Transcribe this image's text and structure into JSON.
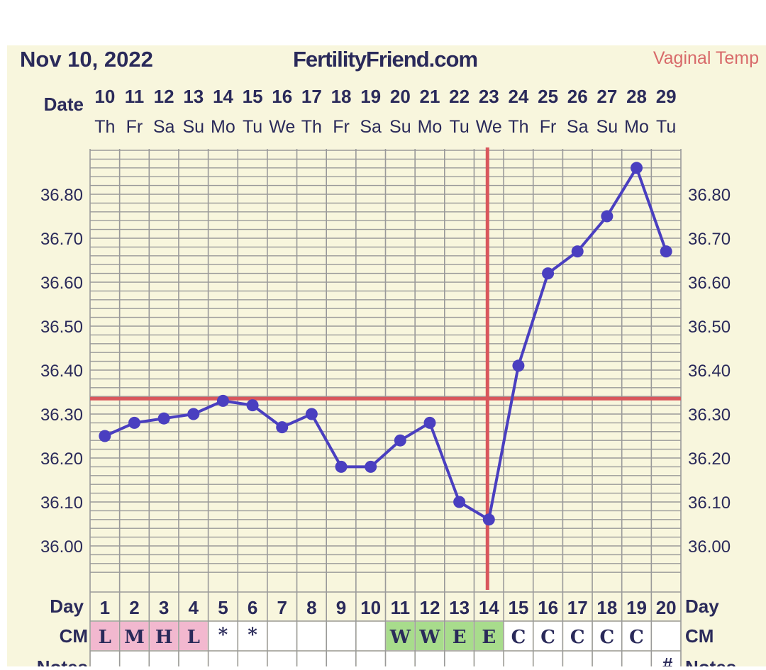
{
  "header": {
    "date": "Nov 10, 2022",
    "site": "FertilityFriend.com",
    "mode": "Vaginal Temp"
  },
  "labels": {
    "date": "Date",
    "day": "Day",
    "cm": "CM",
    "notes": "Notes"
  },
  "colors": {
    "background": "#f8f6dd",
    "grid": "#9a9a9a",
    "line": "#4a3fc0",
    "coverline": "#d9575c",
    "cm_pink": "#f2b8cf",
    "cm_green": "#a8dc8c"
  },
  "chart_data": {
    "type": "line",
    "x": [
      "10",
      "11",
      "12",
      "13",
      "14",
      "15",
      "16",
      "17",
      "18",
      "19",
      "20",
      "21",
      "22",
      "23",
      "24",
      "25",
      "26",
      "27",
      "28",
      "29"
    ],
    "day_of_week": [
      "Th",
      "Fr",
      "Sa",
      "Su",
      "Mo",
      "Tu",
      "We",
      "Th",
      "Fr",
      "Sa",
      "Su",
      "Mo",
      "Tu",
      "We",
      "Th",
      "Fr",
      "Sa",
      "Su",
      "Mo",
      "Tu"
    ],
    "cycle_day": [
      "1",
      "2",
      "3",
      "4",
      "5",
      "6",
      "7",
      "8",
      "9",
      "10",
      "11",
      "12",
      "13",
      "14",
      "15",
      "16",
      "17",
      "18",
      "19",
      "20"
    ],
    "y": [
      36.25,
      36.28,
      36.29,
      36.3,
      36.33,
      36.32,
      36.27,
      36.3,
      36.18,
      36.18,
      36.24,
      36.28,
      36.1,
      36.06,
      36.41,
      36.62,
      36.67,
      36.75,
      36.86,
      36.67
    ],
    "yticks": [
      "36.00",
      "36.10",
      "36.20",
      "36.30",
      "36.40",
      "36.50",
      "36.60",
      "36.70",
      "36.80"
    ],
    "ylim": [
      35.94,
      36.9
    ],
    "coverline": 36.335,
    "ovulation_day_index": 13,
    "cm": [
      "L",
      "M",
      "H",
      "L",
      "*",
      "*",
      "",
      "",
      "",
      "",
      "W",
      "W",
      "E",
      "E",
      "C",
      "C",
      "C",
      "C",
      "C",
      ""
    ],
    "cm_color": [
      "pink",
      "pink",
      "pink",
      "pink",
      "",
      "",
      "",
      "",
      "",
      "",
      "green",
      "green",
      "green",
      "green",
      "",
      "",
      "",
      "",
      "",
      ""
    ],
    "notes_mark": "#",
    "grid": true
  }
}
